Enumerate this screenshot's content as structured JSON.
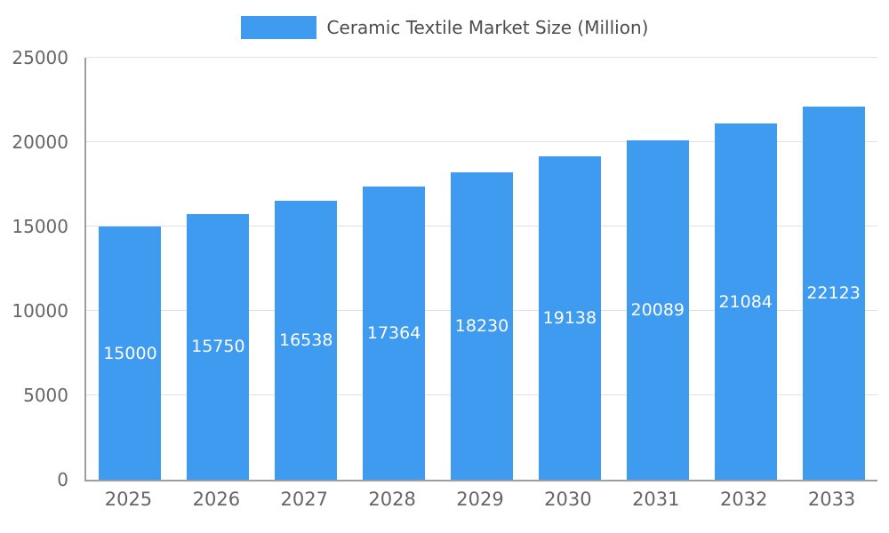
{
  "chart_data": {
    "type": "bar",
    "title": "Ceramic Textile Market Size (Million)",
    "categories": [
      "2025",
      "2026",
      "2027",
      "2028",
      "2029",
      "2030",
      "2031",
      "2032",
      "2033"
    ],
    "values": [
      15000,
      15750,
      16538,
      17364,
      18230,
      19138,
      20089,
      21084,
      22123
    ],
    "xlabel": "",
    "ylabel": "",
    "ylim": [
      0,
      25000
    ],
    "yticks": [
      0,
      5000,
      10000,
      15000,
      20000,
      25000
    ],
    "legend_position": "top",
    "grid": true,
    "bar_color": "#3e9bef",
    "value_label_color": "#ffffff",
    "axis_label_color": "#666666"
  }
}
